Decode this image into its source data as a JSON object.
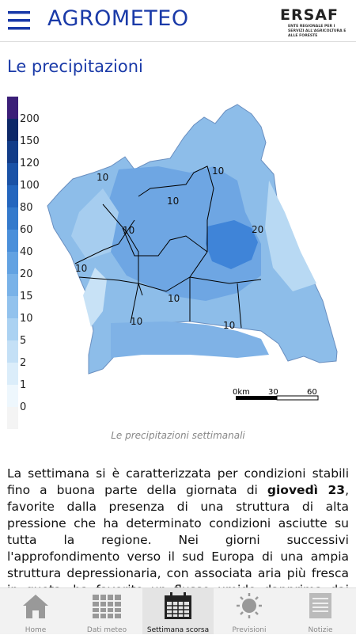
{
  "header": {
    "title": "AGROMETEO",
    "logo": "ERSAF",
    "logo_subtitle": "ENTE REGIONALE PER I SERVIZI ALL'AGRICOLTURA E ALLE FORESTE"
  },
  "section_title": "Le precipitazioni",
  "map": {
    "legend": [
      "200",
      "150",
      "120",
      "100",
      "80",
      "60",
      "40",
      "20",
      "15",
      "10",
      "5",
      "2",
      "1",
      "0"
    ],
    "labels": [
      "10",
      "10",
      "10",
      "10",
      "10",
      "10",
      "10",
      "10",
      "20"
    ],
    "scale": [
      "0km",
      "30",
      "60"
    ],
    "caption": "Le precipitazioni settimanali"
  },
  "article": {
    "text_before": "La settimana si è caratterizzata per condizioni stabili fino a buona parte della giornata di ",
    "bold": "giovedì 23",
    "text_after": ", favorite dalla presenza di una struttura di alta pressione che ha determinato condizioni asciutte su tutta la regione. Nei giorni successivi l'approfondimento verso il sud Europa di una ampia struttura depressionaria, con associata aria più fresca in quota, ha favorito un flusso umido dapprima dai quadranti occidentali, quindi in rotazione da sud con precipitazioni diffuse deboli a interessare"
  },
  "nav": [
    "Home",
    "Dati meteo",
    "Settimana scorsa",
    "Previsioni",
    "Notizie"
  ]
}
